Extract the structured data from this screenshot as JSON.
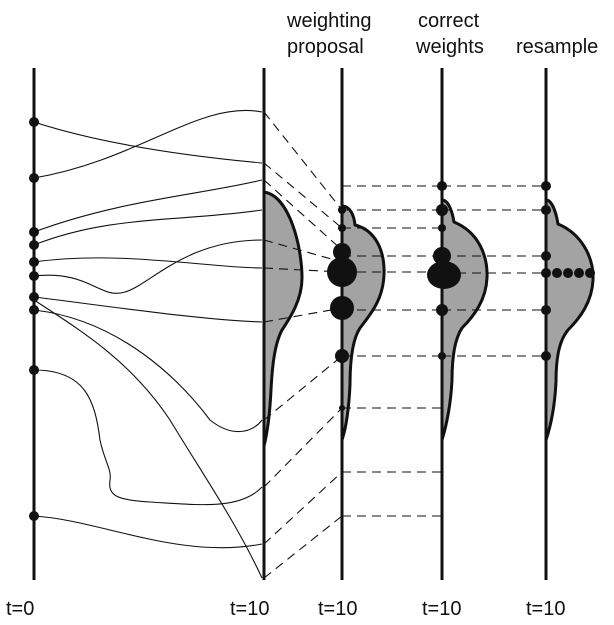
{
  "diagram": {
    "column_titles": {
      "weighting_proposal_line1": "weighting",
      "weighting_proposal_line2": "proposal",
      "correct_weights_line1": "correct",
      "correct_weights_line2": "weights",
      "resample": "resample"
    },
    "time_labels": {
      "t0": "t=0",
      "t10_trajectories": "t=10",
      "t10_weighting_proposal": "t=10",
      "t10_correct_weights": "t=10",
      "t10_resample": "t=10"
    },
    "colors": {
      "line": "#111111",
      "density_fill": "#a3a3a3",
      "background": "#ffffff"
    },
    "particle_count": 10,
    "resampled_duplicate_count": 5
  }
}
